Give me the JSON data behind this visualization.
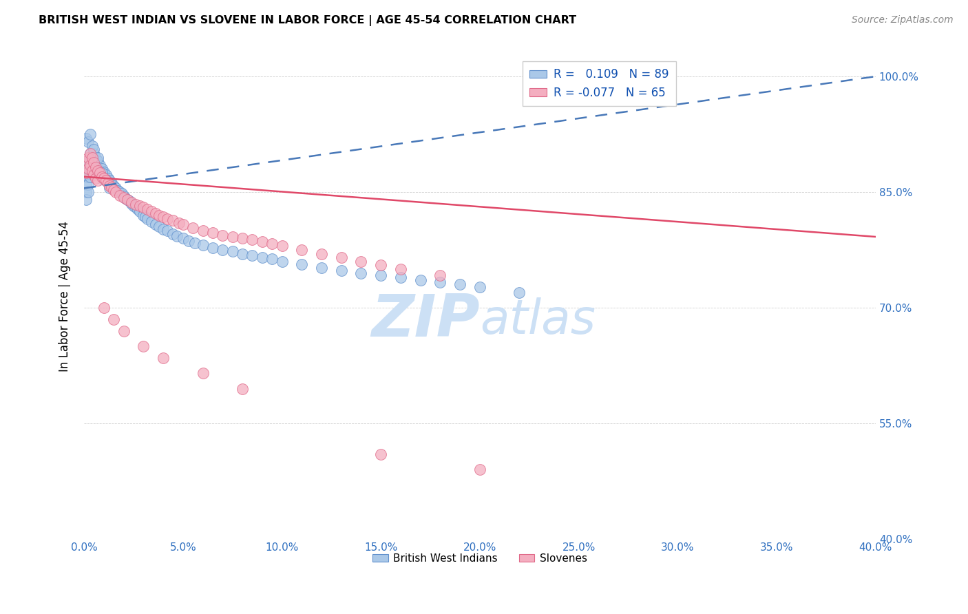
{
  "title": "BRITISH WEST INDIAN VS SLOVENE IN LABOR FORCE | AGE 45-54 CORRELATION CHART",
  "source": "Source: ZipAtlas.com",
  "ylabel": "In Labor Force | Age 45-54",
  "xlim": [
    0.0,
    0.4
  ],
  "ylim": [
    0.4,
    1.03
  ],
  "xticks": [
    0.0,
    0.05,
    0.1,
    0.15,
    0.2,
    0.25,
    0.3,
    0.35,
    0.4
  ],
  "yticks": [
    0.4,
    0.55,
    0.7,
    0.85,
    1.0
  ],
  "ytick_labels": [
    "40.0%",
    "55.0%",
    "70.0%",
    "85.0%",
    "100.0%"
  ],
  "xtick_labels": [
    "0.0%",
    "5.0%",
    "10.0%",
    "15.0%",
    "20.0%",
    "25.0%",
    "30.0%",
    "35.0%",
    "40.0%"
  ],
  "r_blue": 0.109,
  "n_blue": 89,
  "r_pink": -0.077,
  "n_pink": 65,
  "blue_color": "#aac8e8",
  "pink_color": "#f4aec0",
  "blue_edge": "#6090cc",
  "pink_edge": "#e06888",
  "trend_blue_color": "#4878b8",
  "trend_pink_color": "#e04868",
  "watermark_color": "#cce0f5",
  "blue_x": [
    0.001,
    0.001,
    0.001,
    0.001,
    0.001,
    0.002,
    0.002,
    0.002,
    0.002,
    0.002,
    0.003,
    0.003,
    0.003,
    0.003,
    0.004,
    0.004,
    0.004,
    0.005,
    0.005,
    0.005,
    0.006,
    0.006,
    0.007,
    0.007,
    0.008,
    0.008,
    0.009,
    0.01,
    0.01,
    0.011,
    0.012,
    0.013,
    0.014,
    0.015,
    0.016,
    0.017,
    0.018,
    0.019,
    0.02,
    0.021,
    0.022,
    0.023,
    0.024,
    0.025,
    0.026,
    0.027,
    0.028,
    0.03,
    0.031,
    0.032,
    0.034,
    0.036,
    0.038,
    0.04,
    0.042,
    0.045,
    0.047,
    0.05,
    0.053,
    0.056,
    0.06,
    0.065,
    0.07,
    0.075,
    0.08,
    0.085,
    0.09,
    0.095,
    0.1,
    0.11,
    0.12,
    0.13,
    0.14,
    0.15,
    0.16,
    0.17,
    0.18,
    0.19,
    0.2,
    0.22,
    0.001,
    0.002,
    0.003,
    0.004,
    0.005,
    0.007,
    0.009,
    0.011,
    0.013
  ],
  "blue_y": [
    0.88,
    0.87,
    0.86,
    0.85,
    0.84,
    0.89,
    0.88,
    0.87,
    0.86,
    0.85,
    0.9,
    0.89,
    0.88,
    0.87,
    0.895,
    0.885,
    0.875,
    0.9,
    0.89,
    0.88,
    0.895,
    0.885,
    0.89,
    0.88,
    0.885,
    0.875,
    0.88,
    0.876,
    0.866,
    0.872,
    0.868,
    0.865,
    0.862,
    0.858,
    0.855,
    0.852,
    0.85,
    0.848,
    0.845,
    0.842,
    0.84,
    0.838,
    0.835,
    0.832,
    0.83,
    0.828,
    0.825,
    0.82,
    0.818,
    0.815,
    0.812,
    0.808,
    0.805,
    0.802,
    0.8,
    0.796,
    0.793,
    0.79,
    0.787,
    0.784,
    0.781,
    0.778,
    0.775,
    0.773,
    0.77,
    0.768,
    0.765,
    0.763,
    0.76,
    0.756,
    0.752,
    0.748,
    0.745,
    0.742,
    0.739,
    0.736,
    0.733,
    0.73,
    0.727,
    0.72,
    0.92,
    0.915,
    0.925,
    0.91,
    0.905,
    0.895,
    0.875,
    0.865,
    0.855
  ],
  "pink_x": [
    0.001,
    0.001,
    0.002,
    0.002,
    0.003,
    0.003,
    0.004,
    0.004,
    0.005,
    0.005,
    0.006,
    0.006,
    0.007,
    0.007,
    0.008,
    0.009,
    0.01,
    0.011,
    0.012,
    0.013,
    0.014,
    0.015,
    0.016,
    0.018,
    0.02,
    0.022,
    0.024,
    0.026,
    0.028,
    0.03,
    0.032,
    0.034,
    0.036,
    0.038,
    0.04,
    0.042,
    0.045,
    0.048,
    0.05,
    0.055,
    0.06,
    0.065,
    0.07,
    0.075,
    0.08,
    0.085,
    0.09,
    0.095,
    0.1,
    0.11,
    0.12,
    0.13,
    0.14,
    0.15,
    0.16,
    0.18,
    0.01,
    0.015,
    0.02,
    0.03,
    0.04,
    0.06,
    0.08,
    0.15,
    0.2
  ],
  "pink_y": [
    0.89,
    0.875,
    0.895,
    0.88,
    0.9,
    0.885,
    0.895,
    0.878,
    0.888,
    0.872,
    0.882,
    0.868,
    0.878,
    0.865,
    0.875,
    0.87,
    0.868,
    0.865,
    0.862,
    0.858,
    0.856,
    0.853,
    0.85,
    0.846,
    0.843,
    0.84,
    0.837,
    0.834,
    0.832,
    0.83,
    0.828,
    0.825,
    0.822,
    0.82,
    0.818,
    0.815,
    0.813,
    0.81,
    0.808,
    0.804,
    0.8,
    0.797,
    0.794,
    0.792,
    0.79,
    0.788,
    0.786,
    0.783,
    0.78,
    0.775,
    0.77,
    0.765,
    0.76,
    0.755,
    0.75,
    0.742,
    0.7,
    0.685,
    0.67,
    0.65,
    0.635,
    0.615,
    0.595,
    0.51,
    0.49
  ],
  "trend_blue_x0": 0.0,
  "trend_blue_y0": 0.855,
  "trend_blue_x1": 0.4,
  "trend_blue_y1": 1.0,
  "trend_pink_x0": 0.0,
  "trend_pink_y0": 0.87,
  "trend_pink_x1": 0.4,
  "trend_pink_y1": 0.792
}
